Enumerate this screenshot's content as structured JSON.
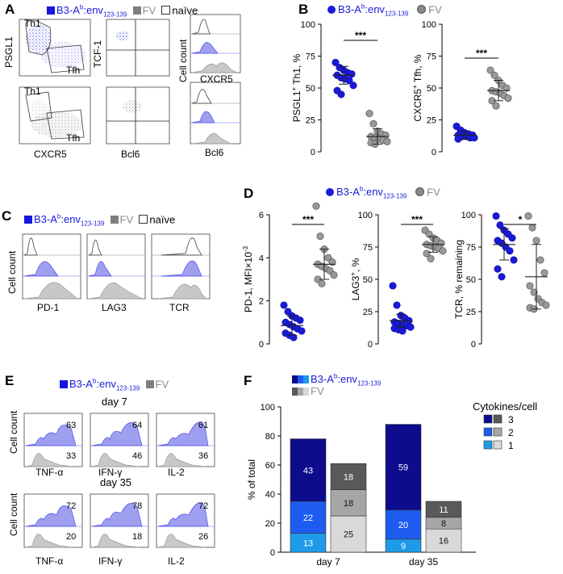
{
  "panelA": {
    "letter": "A",
    "legend": {
      "blue": "B3-A",
      "blue_sup": "b",
      "blue_rest": ":env",
      "blue_sub": "123-139",
      "grey": "FV",
      "white": "naïve"
    },
    "th1_top": "Th1",
    "tfh_top": "Tfh",
    "th1_bottom": "Th1",
    "tfh_bottom": "Tfh",
    "ylabel_psgl1": "PSGL1",
    "xlabel_cxcr5": "CXCR5",
    "ylabel_tcf1": "TCF-1",
    "xlabel_bcl6": "Bcl6",
    "ylabel_cellcount": "Cell count",
    "hist_cxcr5": "CXCR5",
    "hist_bcl6": "Bcl6"
  },
  "panelB": {
    "letter": "B",
    "legend_blue": "B3-A",
    "legend_blue_sup": "b",
    "legend_blue_rest": ":env",
    "legend_blue_sub": "123-139",
    "legend_grey": "FV",
    "sig1": "***",
    "sig2": "***"
  },
  "panelC": {
    "letter": "C",
    "legend_blue": "B3-A",
    "legend_blue_sup": "b",
    "legend_blue_rest": ":env",
    "legend_blue_sub": "123-139",
    "legend_grey": "FV",
    "legend_white": "naïve",
    "ylabel": "Cell count",
    "x1": "PD-1",
    "x2": "LAG3",
    "x3": "TCR"
  },
  "panelD": {
    "letter": "D",
    "legend_blue": "B3-A",
    "legend_blue_sup": "b",
    "legend_blue_rest": ":env",
    "legend_blue_sub": "123-139",
    "legend_grey": "FV",
    "sig1": "***",
    "sig2": "***",
    "sig3": "*"
  },
  "panelE": {
    "letter": "E",
    "legend_blue": "B3-A",
    "legend_blue_sup": "b",
    "legend_blue_rest": ":env",
    "legend_blue_sub": "123-139",
    "legend_grey": "FV",
    "day7": "day 7",
    "day35": "day 35",
    "ylabel": "Cell count",
    "x1": "TNF-α",
    "x2": "IFN-γ",
    "x3": "IL-2",
    "x1b": "TNF-α",
    "x2b": "IFN-γ",
    "x3b": "IL-2",
    "d7_blue": [
      "63",
      "64",
      "61"
    ],
    "d7_grey": [
      "33",
      "46",
      "36"
    ],
    "d35_blue": [
      "72",
      "78",
      "72"
    ],
    "d35_grey": [
      "20",
      "18",
      "26"
    ]
  },
  "panelF": {
    "letter": "F",
    "legend_blue": "B3-A",
    "legend_blue_sup": "b",
    "legend_blue_rest": ":env",
    "legend_blue_sub": "123-139",
    "legend_grey": "FV",
    "cyto_title": "Cytokines/cell",
    "cyto_labels": [
      "3",
      "2",
      "1"
    ]
  },
  "colors": {
    "blue": "#1a1ad8",
    "blue_mid": "#1e5cf0",
    "blue_light": "#1e9be8",
    "navy": "#0c0c8c",
    "grey_dark": "#595959",
    "grey_mid": "#a6a6a6",
    "grey_light": "#d9d9d9",
    "hist_blue": "#9f9ff0",
    "hist_grey": "#c8c8c8"
  },
  "chart_data": [
    {
      "id": "B1",
      "type": "scatter",
      "title": "",
      "ylabel": "PSGL1+ Th1, %",
      "ylabel_sup": "+",
      "ylabel_main": "PSGL1",
      "ylabel_rest": " Th1, %",
      "ylim": [
        0,
        100
      ],
      "yticks": [
        "0",
        "25",
        "50",
        "75",
        "100"
      ],
      "series": [
        {
          "name": "B3-Ab:env123-139",
          "color": "#1a1ad8",
          "values": [
            70,
            66,
            64,
            62,
            61,
            60,
            58,
            57,
            56,
            52,
            48,
            45
          ],
          "mean": 60,
          "sd": 7
        },
        {
          "name": "FV",
          "color": "#999999",
          "values": [
            30,
            22,
            16,
            14,
            13,
            12,
            11,
            10,
            9,
            8,
            7,
            6
          ],
          "mean": 12,
          "sd": 6
        }
      ]
    },
    {
      "id": "B2",
      "type": "scatter",
      "title": "",
      "ylabel": "CXCR5+ Tfh, %",
      "ylabel_sup": "+",
      "ylabel_main": "CXCR5",
      "ylabel_rest": " Tfh, %",
      "ylim": [
        0,
        100
      ],
      "yticks": [
        "0",
        "25",
        "50",
        "75",
        "100"
      ],
      "series": [
        {
          "name": "B3-Ab:env123-139",
          "color": "#1a1ad8",
          "values": [
            20,
            17,
            15,
            14,
            13,
            13,
            12,
            12,
            11,
            11,
            10
          ],
          "mean": 13,
          "sd": 3
        },
        {
          "name": "FV",
          "color": "#999999",
          "values": [
            64,
            60,
            56,
            52,
            50,
            48,
            47,
            46,
            44,
            42,
            40,
            36
          ],
          "mean": 48,
          "sd": 8
        }
      ]
    },
    {
      "id": "D1",
      "type": "scatter",
      "title": "",
      "ylabel": "PD-1, MFI×10-3",
      "ylabel_main": "PD-1, MFI×10",
      "ylabel_sup": "-3",
      "ylabel_rest": "",
      "ylim": [
        0,
        6
      ],
      "yticks": [
        "0",
        "2",
        "4",
        "6"
      ],
      "series": [
        {
          "name": "B3-Ab:env123-139",
          "color": "#1a1ad8",
          "values": [
            1.8,
            1.5,
            1.3,
            1.2,
            1.1,
            1.0,
            0.9,
            0.8,
            0.7,
            0.6,
            0.5,
            0.4,
            0.3
          ],
          "mean": 0.85,
          "sd": 0.45
        },
        {
          "name": "FV",
          "color": "#999999",
          "values": [
            6.4,
            5.0,
            4.4,
            4.0,
            3.8,
            3.7,
            3.6,
            3.5,
            3.4,
            3.2,
            3.0,
            2.8
          ],
          "mean": 3.7,
          "sd": 0.7
        }
      ]
    },
    {
      "id": "D2",
      "type": "scatter",
      "title": "",
      "ylabel": "LAG3+, %",
      "ylabel_main": "LAG3",
      "ylabel_sup": "+",
      "ylabel_rest": ", %",
      "ylim": [
        0,
        100
      ],
      "yticks": [
        "0",
        "25",
        "50",
        "75",
        "100"
      ],
      "series": [
        {
          "name": "B3-Ab:env123-139",
          "color": "#1a1ad8",
          "values": [
            45,
            30,
            22,
            20,
            18,
            17,
            16,
            15,
            14,
            13,
            12,
            11,
            10
          ],
          "mean": 18,
          "sd": 5
        },
        {
          "name": "FV",
          "color": "#999999",
          "values": [
            88,
            85,
            82,
            80,
            78,
            77,
            76,
            75,
            74,
            72,
            70,
            66
          ],
          "mean": 77,
          "sd": 6
        }
      ]
    },
    {
      "id": "D3",
      "type": "scatter",
      "title": "",
      "ylabel": "TCR, % remaining",
      "ylabel_main": "TCR, % remaining",
      "ylabel_sup": "",
      "ylabel_rest": "",
      "ylim": [
        0,
        100
      ],
      "yticks": [
        "0",
        "25",
        "50",
        "75",
        "100"
      ],
      "series": [
        {
          "name": "B3-Ab:env123-139",
          "color": "#1a1ad8",
          "values": [
            99,
            92,
            88,
            85,
            82,
            80,
            78,
            75,
            72,
            65,
            58,
            52
          ],
          "mean": 77,
          "sd": 12
        },
        {
          "name": "FV",
          "color": "#999999",
          "values": [
            99,
            90,
            80,
            65,
            55,
            45,
            40,
            35,
            32,
            30,
            28,
            27
          ],
          "mean": 52,
          "sd": 25
        }
      ]
    },
    {
      "id": "F",
      "type": "bar",
      "title": "",
      "ylabel": "% of total",
      "ylim": [
        0,
        100
      ],
      "yticks": [
        "0",
        "20",
        "40",
        "60",
        "80",
        "100"
      ],
      "categories": [
        "day 7",
        "day 35"
      ],
      "groups": [
        "B3-Ab:env123-139",
        "FV"
      ],
      "series": [
        {
          "name": "1",
          "values_blue": [
            13,
            9
          ],
          "values_grey": [
            25,
            16
          ]
        },
        {
          "name": "2",
          "values_blue": [
            22,
            20
          ],
          "values_grey": [
            18,
            8
          ]
        },
        {
          "name": "3",
          "values_blue": [
            43,
            59
          ],
          "values_grey": [
            18,
            11
          ]
        }
      ]
    }
  ]
}
